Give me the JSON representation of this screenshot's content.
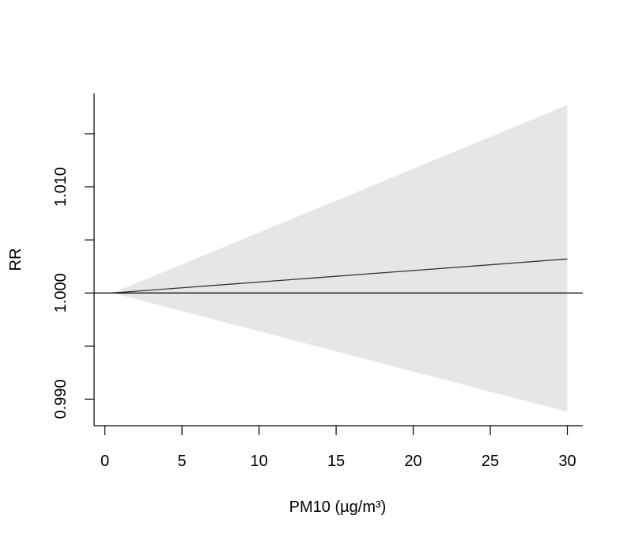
{
  "chart_data": {
    "type": "line",
    "xlabel": "PM10 (µg/m³)",
    "ylabel": "RR",
    "xlim": [
      -0.7,
      31.0
    ],
    "ylim": [
      0.9875,
      1.0188
    ],
    "x_ticks": [
      0,
      5,
      10,
      15,
      20,
      25,
      30
    ],
    "x_tick_labels": [
      "0",
      "5",
      "10",
      "15",
      "20",
      "25",
      "30"
    ],
    "y_ticks": [
      0.99,
      0.995,
      1.0,
      1.005,
      1.01,
      1.015
    ],
    "y_tick_labels": [
      "0.990",
      "",
      "1.000",
      "",
      "1.010",
      ""
    ],
    "reference_line": {
      "y": 1.0
    },
    "grid": false,
    "series": [
      {
        "x": [
          0.5,
          30
        ],
        "y": [
          1.0,
          1.0032
        ],
        "ci_lower": [
          1.0,
          0.9888
        ],
        "ci_upper": [
          1.0,
          1.0177
        ]
      }
    ],
    "colors": {
      "band": "#e6e6e6",
      "line": "#333333",
      "axis": "#000000"
    }
  }
}
